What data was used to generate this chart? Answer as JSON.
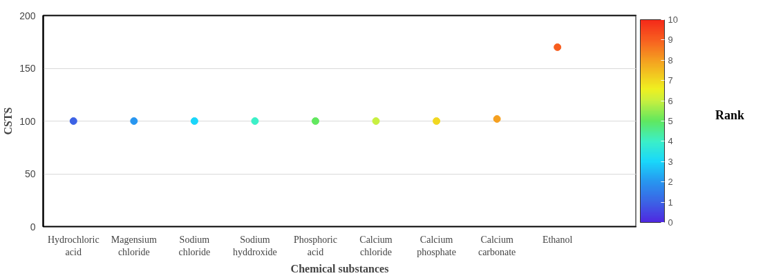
{
  "chart_data": {
    "type": "scatter",
    "xlabel": "Chemical substances",
    "ylabel": "CSTS",
    "clabel": "Rank",
    "categories": [
      "Hydrochloric\nacid",
      "Magensium\nchloride",
      "Sodium\nchloride",
      "Sodium\nhyddroxide",
      "Phosphoric\nacid",
      "Calcium\nchloride",
      "Calcium\nphosphate",
      "Calcium\ncarbonate",
      "Ethanol"
    ],
    "values": [
      100,
      100,
      100,
      100,
      100,
      100,
      100,
      102,
      170
    ],
    "cvalues": [
      1,
      2,
      3,
      4,
      5,
      6,
      7,
      8,
      9
    ],
    "ylim": [
      0,
      200
    ],
    "yticks": [
      0,
      50,
      100,
      150,
      200
    ],
    "clim": [
      0,
      10
    ],
    "cticks": [
      0,
      1,
      2,
      3,
      4,
      5,
      6,
      7,
      8,
      9,
      10
    ],
    "grid": "y",
    "marker": "circle"
  }
}
